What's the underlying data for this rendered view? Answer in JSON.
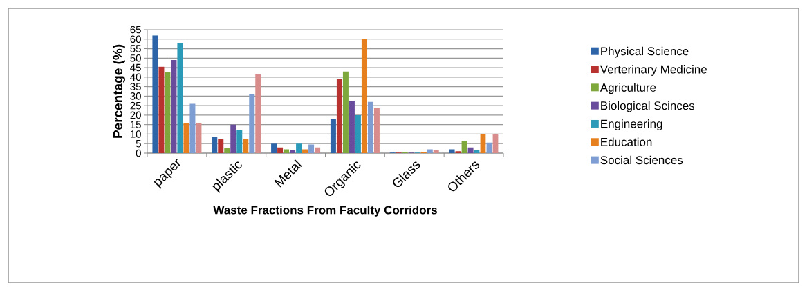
{
  "chart_data": {
    "type": "bar",
    "xlabel": "Waste Fractions From Faculty Corridors",
    "ylabel": "Percentage (%)",
    "categories": [
      "paper",
      "plastic",
      "Metal",
      "Organic",
      "Glass",
      "Others"
    ],
    "series": [
      {
        "name": "Physical Science",
        "color": "#2e64a8",
        "values": [
          62,
          8.5,
          5,
          18,
          0.3,
          2
        ]
      },
      {
        "name": "Verterinary Medicine",
        "color": "#b83330",
        "values": [
          45.5,
          7.5,
          3,
          39,
          0.3,
          1
        ]
      },
      {
        "name": "Agriculture",
        "color": "#7fa83c",
        "values": [
          42.5,
          2.5,
          2,
          43,
          0.5,
          6.5
        ]
      },
      {
        "name": "Biological Scinces",
        "color": "#6a4c9c",
        "values": [
          49,
          15,
          1.5,
          27.5,
          0.3,
          3
        ]
      },
      {
        "name": "Engineering",
        "color": "#2b9ab8",
        "values": [
          58,
          12,
          5,
          20,
          0.3,
          1.5
        ]
      },
      {
        "name": "Education",
        "color": "#e6801e",
        "values": [
          16,
          7.5,
          2,
          60,
          0.5,
          10
        ]
      },
      {
        "name": "Social Sciences",
        "color": "#7e9dd2",
        "values": [
          26,
          31,
          4.5,
          27,
          2,
          5.5
        ]
      },
      {
        "color": "#d98c8c",
        "values": [
          16,
          41.5,
          3,
          24,
          1.5,
          10
        ]
      }
    ],
    "ylim": [
      0,
      65
    ],
    "yticks": [
      0,
      5,
      10,
      15,
      20,
      25,
      30,
      35,
      40,
      45,
      50,
      55,
      60,
      65
    ],
    "grid": "y",
    "legend": "right"
  }
}
